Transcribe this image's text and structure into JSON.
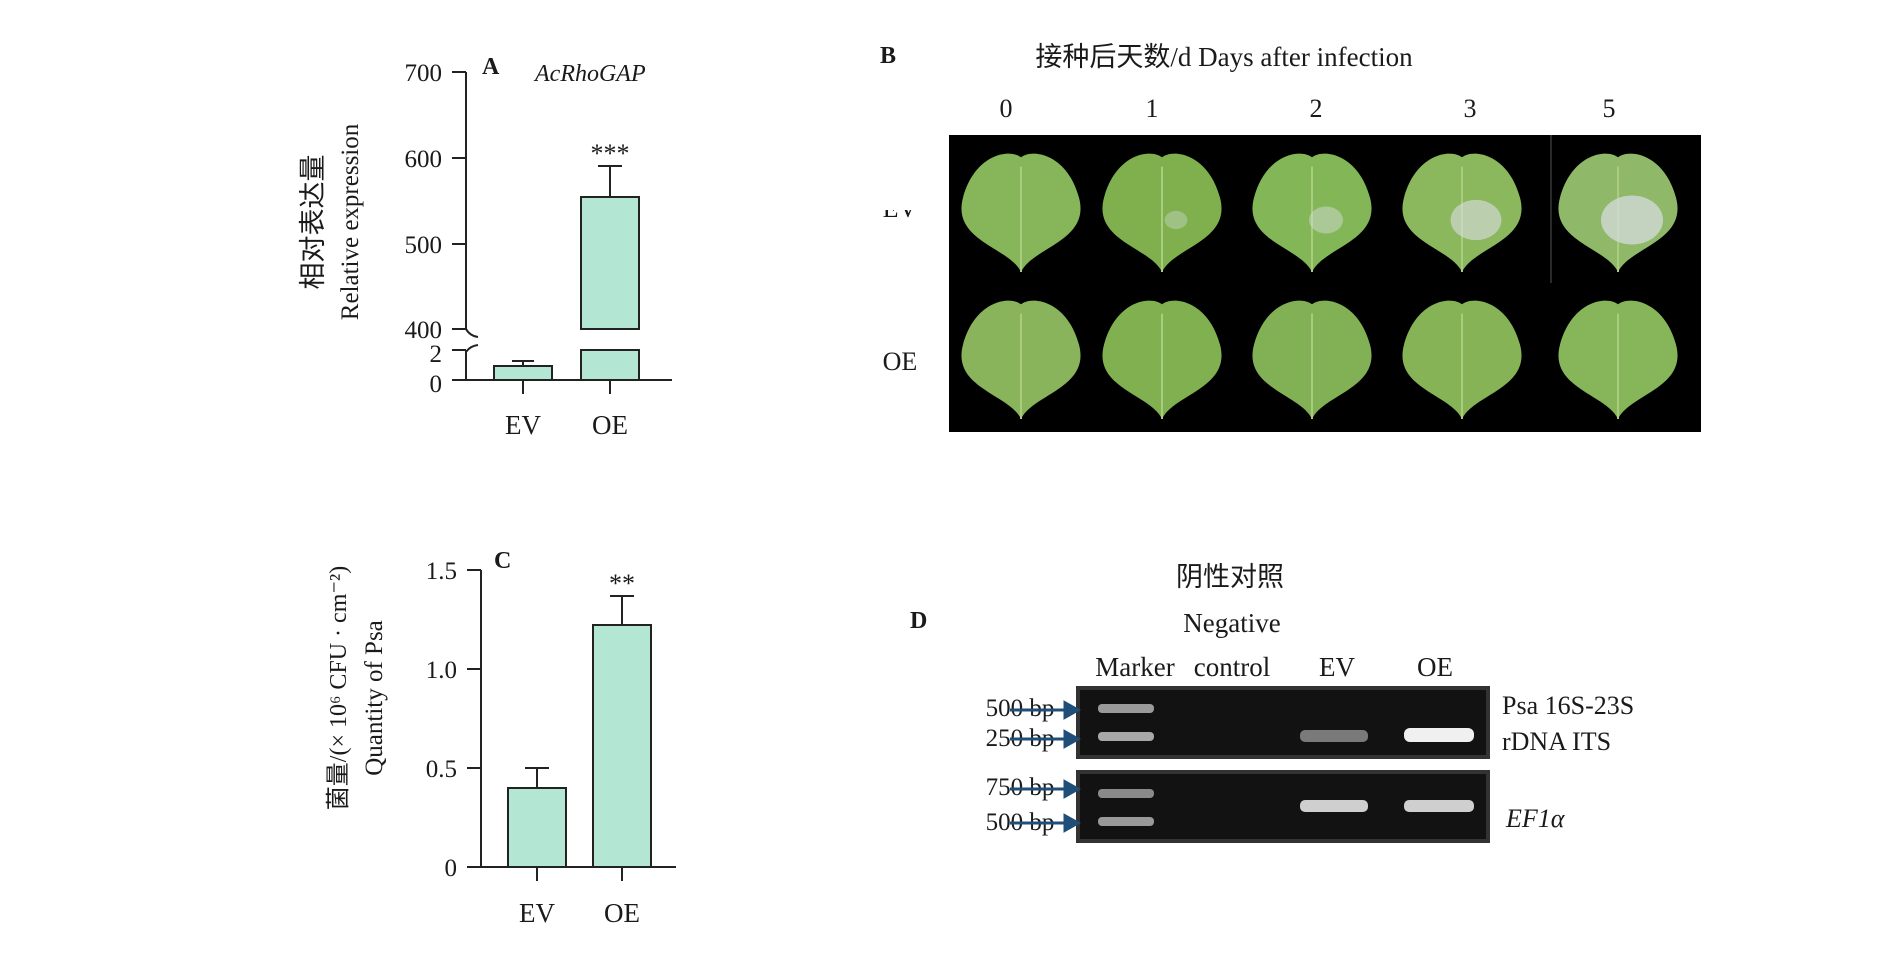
{
  "panelA": {
    "letter": "A",
    "gene": "AcRhoGAP",
    "ylabel_cn": "相对表达量",
    "ylabel_en": "Relative expression",
    "upper_ticks": [
      "700",
      "600",
      "500",
      "400"
    ],
    "lower_ticks": [
      "2",
      "0"
    ],
    "significance": "***",
    "chart_data": {
      "type": "bar",
      "categories": [
        "EV",
        "OE"
      ],
      "values": [
        1,
        552
      ],
      "errors": [
        0.3,
        36
      ],
      "axis_break": [
        2,
        400
      ],
      "ylim": [
        0,
        700
      ],
      "ylabel": "相对表达量 Relative expression",
      "title": "AcRhoGAP"
    }
  },
  "panelB": {
    "letter": "B",
    "title": "接种后天数/d Days after infection",
    "days": [
      "0",
      "1",
      "2",
      "3",
      "5"
    ],
    "rows": [
      "EV",
      "OE"
    ],
    "lesion_severity_EV": [
      0,
      0.05,
      0.25,
      0.55,
      0.75
    ],
    "lesion_severity_OE": [
      0,
      0,
      0,
      0,
      0
    ],
    "colors": {
      "background": "#000000",
      "leaf": "#7fae4e",
      "lesion": "#d8dde0"
    }
  },
  "panelC": {
    "letter": "C",
    "ylabel_cn": "菌量/(× 10⁶ CFU · cm⁻²)",
    "ylabel_en": "Quantity of Psa",
    "ticks": [
      "1.5",
      "1.0",
      "0.5",
      "0"
    ],
    "significance": "**",
    "chart_data": {
      "type": "bar",
      "categories": [
        "EV",
        "OE"
      ],
      "values": [
        0.4,
        1.22
      ],
      "errors": [
        0.1,
        0.15
      ],
      "ylim": [
        0,
        1.5
      ],
      "ylabel": "菌量/(× 10⁶ CFU · cm⁻²) Quantity of Psa"
    }
  },
  "panelD": {
    "letter": "D",
    "header_cn": "阴性对照",
    "header_neg": "Negative",
    "lanes": [
      "Marker",
      "control",
      "EV",
      "OE"
    ],
    "gel1_markers": [
      "500 bp",
      "250 bp"
    ],
    "gel2_markers": [
      "750 bp",
      "500 bp"
    ],
    "gel1_label_1": "Psa 16S-23S",
    "gel1_label_2": "rDNA ITS",
    "gel2_label": "EF1α",
    "colors": {
      "gel_bg": "#121212",
      "arrow": "#1f4e79",
      "band": "#e6e6e6"
    }
  }
}
